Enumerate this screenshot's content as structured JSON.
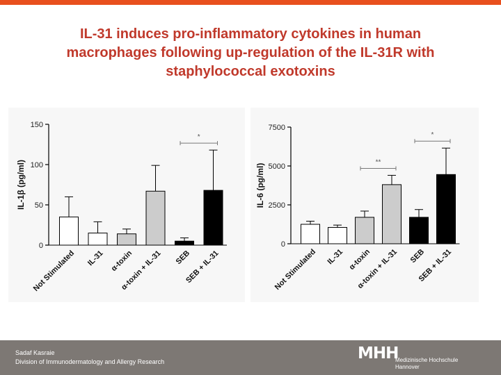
{
  "title": {
    "line1": "IL-31 induces pro-inflammatory cytokines in human",
    "line2": "macrophages following up-regulation of the IL-31R with",
    "line3": "staphylococcal exotoxins"
  },
  "footer": {
    "author": "Sadaf Kasraie",
    "affiliation": "Division of Immunodermatology and Allergy Research",
    "logo_mark": "MHH",
    "logo_line1": "Medizinische Hochschule",
    "logo_line2": "Hannover"
  },
  "colors": {
    "accent_bar": "#e8501e",
    "title": "#c0392b",
    "footer": "#7d7874"
  },
  "chart_data": [
    {
      "type": "bar",
      "ylabel": "IL-1β (pg/ml)",
      "ylim": [
        0,
        150
      ],
      "yticks": [
        0,
        50,
        100,
        150
      ],
      "categories": [
        "Not Stimulated",
        "IL-31",
        "α-toxin",
        "α-toxin + IL-31",
        "SEB",
        "SEB + IL-31"
      ],
      "values": [
        35,
        15,
        14,
        67,
        5,
        68
      ],
      "errors": [
        25,
        14,
        6,
        32,
        4,
        50
      ],
      "fills": [
        "#ffffff",
        "#ffffff",
        "#cccccc",
        "#cccccc",
        "#000000",
        "#000000"
      ],
      "significance": [
        {
          "from": 4,
          "to": 5,
          "label": "*"
        }
      ]
    },
    {
      "type": "bar",
      "ylabel": "IL-6 (pg/ml)",
      "ylim": [
        0,
        7500
      ],
      "yticks": [
        0,
        2500,
        5000,
        7500
      ],
      "categories": [
        "Not Stimulated",
        "IL-31",
        "α-toxin",
        "α-toxin + IL-31",
        "SEB",
        "SEB + IL-31"
      ],
      "values": [
        1250,
        1050,
        1700,
        3800,
        1700,
        4450
      ],
      "errors": [
        200,
        150,
        400,
        600,
        500,
        1700
      ],
      "fills": [
        "#ffffff",
        "#ffffff",
        "#cccccc",
        "#cccccc",
        "#000000",
        "#000000"
      ],
      "significance": [
        {
          "from": 2,
          "to": 3,
          "label": "**"
        },
        {
          "from": 4,
          "to": 5,
          "label": "*"
        }
      ]
    }
  ]
}
